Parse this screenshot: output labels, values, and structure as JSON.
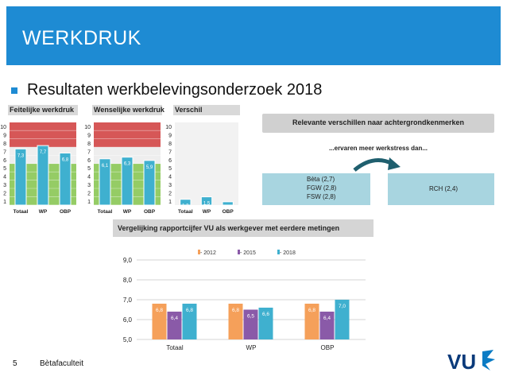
{
  "header": {
    "title": "WERKDRUK"
  },
  "bullet": {
    "text": "Resultaten werkbelevingsonderzoek 2018"
  },
  "footer": {
    "page": "5",
    "text": "Bètafaculteit"
  },
  "logo": {
    "text": "VU"
  },
  "colors": {
    "header": "#1e8bd3",
    "bar_blue": "#3fb0cf",
    "red_zone": "#cf3a3a",
    "green_zone": "#7bbf3f",
    "s2012": "#f5a05a",
    "s2015": "#8a5aa8",
    "s2018": "#3fb0cf"
  },
  "panels": [
    {
      "title": "Feitelijke werkdruk",
      "categories": [
        "Totaal",
        "WP",
        "OBP"
      ],
      "values": [
        7.3,
        7.7,
        6.8
      ],
      "labels": [
        "7,3",
        "7,7",
        "6,8"
      ]
    },
    {
      "title": "Wenselijke werkdruk",
      "categories": [
        "Totaal",
        "WP",
        "OBP"
      ],
      "values": [
        6.1,
        6.3,
        5.9
      ],
      "labels": [
        "6,1",
        "6,3",
        "5,9"
      ]
    },
    {
      "title": "Verschil",
      "categories": [
        "Totaal",
        "WP",
        "OBP"
      ],
      "values": [
        1.2,
        1.5,
        0.9
      ],
      "labels": [
        "1,2",
        "1,5",
        "0,9"
      ]
    }
  ],
  "yticks_small": [
    "10",
    "9",
    "8",
    "7",
    "6",
    "5",
    "4",
    "3",
    "2",
    "1"
  ],
  "relevant": {
    "title": "Relevante verschillen naar achtergrondkenmerken",
    "subtitle": "...ervaren meer werkstress dan...",
    "left_lines": [
      "Bèta (2,7)",
      "FGW (2,8)",
      "FSW (2,8)"
    ],
    "right": "RCH (2,4)"
  },
  "chart_data": {
    "type": "bar",
    "title": "Vergelijking rapportcijfer VU als werkgever met eerdere metingen",
    "categories": [
      "Totaal",
      "WP",
      "OBP"
    ],
    "series": [
      {
        "name": "2012",
        "values": [
          6.8,
          6.8,
          6.8
        ],
        "labels": [
          "6,8",
          "6,8",
          "6,8"
        ]
      },
      {
        "name": "2015",
        "values": [
          6.4,
          6.5,
          6.4
        ],
        "labels": [
          "6,4",
          "6,5",
          "6,4"
        ]
      },
      {
        "name": "2018",
        "values": [
          6.8,
          6.6,
          7.0
        ],
        "labels": [
          "6,8",
          "6,6",
          "7,0"
        ]
      }
    ],
    "ylim": [
      5.0,
      9.0
    ],
    "yticks": [
      "9,0",
      "8,0",
      "7,0",
      "6,0",
      "5,0"
    ],
    "legend": "top"
  }
}
